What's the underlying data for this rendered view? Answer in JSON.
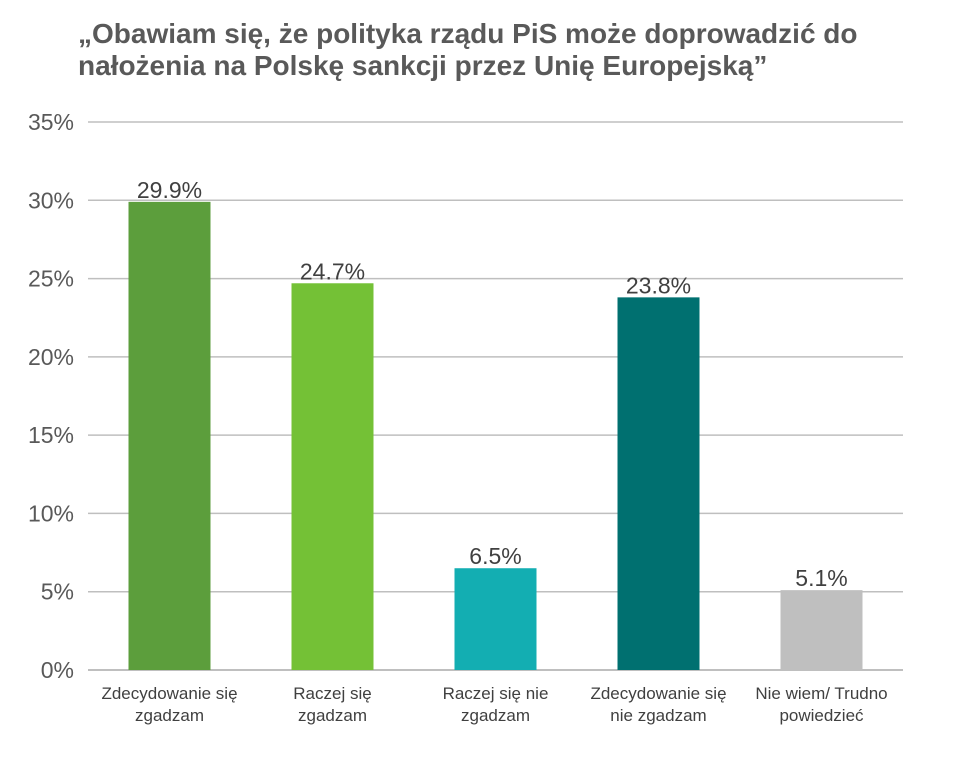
{
  "chart_data": {
    "type": "bar",
    "title": "„Obawiam się, że polityka rządu PiS może doprowadzić do nałożenia na Polskę sankcji przez Unię Europejską”",
    "categories": [
      "Zdecydowanie się zgadzam",
      "Raczej się zgadzam",
      "Raczej się nie zgadzam",
      "Zdecydowanie się nie zgadzam",
      "Nie wiem/ Trudno powiedzieć"
    ],
    "category_lines": [
      [
        "Zdecydowanie się",
        "zgadzam"
      ],
      [
        "Raczej się",
        "zgadzam"
      ],
      [
        "Raczej się nie",
        "zgadzam"
      ],
      [
        "Zdecydowanie się",
        "nie zgadzam"
      ],
      [
        "Nie wiem/ Trudno",
        "powiedzieć"
      ]
    ],
    "values": [
      29.9,
      24.7,
      6.5,
      23.8,
      5.1
    ],
    "value_labels": [
      "29.9%",
      "24.7%",
      "6.5%",
      "23.8%",
      "5.1%"
    ],
    "bar_colors": [
      "#5c9e3c",
      "#74c136",
      "#13aeb2",
      "#007070",
      "#bfbfbf"
    ],
    "yticks": [
      0,
      5,
      10,
      15,
      20,
      25,
      30,
      35
    ],
    "ytick_labels": [
      "0%",
      "5%",
      "10%",
      "15%",
      "20%",
      "25%",
      "30%",
      "35%"
    ],
    "ylim": [
      0,
      35
    ],
    "xlabel": "",
    "ylabel": "",
    "grid": true,
    "gridline_color": "#bfbfbf",
    "legend": "none"
  }
}
